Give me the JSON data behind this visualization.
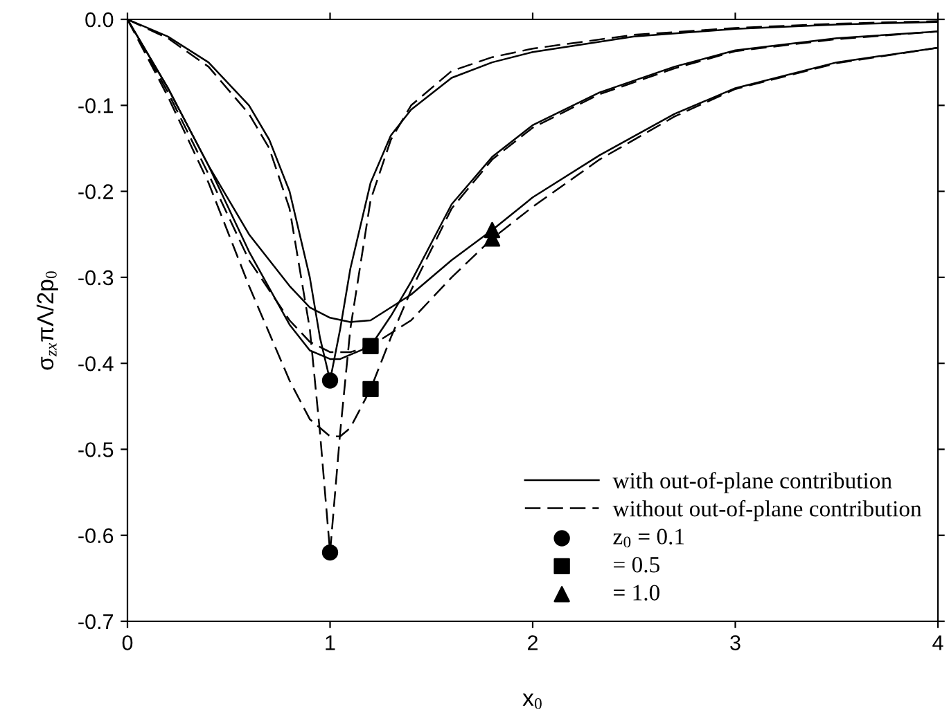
{
  "chart_data": {
    "type": "line",
    "xlabel": "x$_{0}$",
    "ylabel": "σ$_{zx}$πΛ/2p$_{0}$",
    "xlim": [
      0,
      4
    ],
    "xticks": [
      0,
      1,
      2,
      3,
      4
    ],
    "ylim": [
      -0.7,
      0
    ],
    "yticks": [
      {
        "value": -0.7,
        "label": "-0.7"
      },
      {
        "value": -0.6,
        "label": "-0.6"
      },
      {
        "value": -0.5,
        "label": "-0.5"
      },
      {
        "value": -0.4,
        "label": "-0.4"
      },
      {
        "value": -0.3,
        "label": "-0.3"
      },
      {
        "value": -0.2,
        "label": "-0.2"
      },
      {
        "value": -0.1,
        "label": "-0.1"
      },
      {
        "value": 0,
        "label": "0.0"
      }
    ],
    "grid": false,
    "legend": "bottom right",
    "series": [
      {
        "name": "with out-of-plane contribution",
        "color": "#000000",
        "line_style": "solid",
        "x": [
          0,
          0.2,
          0.4,
          0.6,
          0.7,
          0.8,
          0.9,
          0.95,
          1.0,
          1.05,
          1.1,
          1.2,
          1.3,
          1.4,
          1.6,
          1.8,
          2,
          2.5,
          3,
          3.5,
          4
        ],
        "values": [
          0,
          -0.02,
          -0.05,
          -0.1,
          -0.14,
          -0.2,
          -0.3,
          -0.37,
          -0.42,
          -0.36,
          -0.29,
          -0.19,
          -0.135,
          -0.105,
          -0.068,
          -0.05,
          -0.038,
          -0.02,
          -0.011,
          -0.006,
          -0.003
        ]
      },
      {
        "name": "without out-of-plane contribution",
        "color": "#000000",
        "line_style": "dashed",
        "x": [
          0,
          0.2,
          0.4,
          0.6,
          0.7,
          0.8,
          0.9,
          0.95,
          1.0,
          1.05,
          1.1,
          1.2,
          1.3,
          1.4,
          1.6,
          1.8,
          2,
          2.5,
          3,
          3.5,
          4
        ],
        "values": [
          0,
          -0.022,
          -0.055,
          -0.11,
          -0.15,
          -0.22,
          -0.36,
          -0.48,
          -0.62,
          -0.48,
          -0.36,
          -0.21,
          -0.14,
          -0.1,
          -0.06,
          -0.044,
          -0.034,
          -0.018,
          -0.01,
          -0.005,
          -0.002
        ]
      },
      {
        "color": "#000000",
        "line_style": "solid",
        "x": [
          0,
          0.2,
          0.4,
          0.6,
          0.8,
          0.9,
          1.0,
          1.05,
          1.1,
          1.2,
          1.3,
          1.4,
          1.6,
          1.8,
          2,
          2.33,
          2.7,
          3,
          3.5,
          4
        ],
        "values": [
          0,
          -0.08,
          -0.17,
          -0.27,
          -0.355,
          -0.385,
          -0.395,
          -0.395,
          -0.39,
          -0.38,
          -0.345,
          -0.305,
          -0.215,
          -0.16,
          -0.123,
          -0.085,
          -0.055,
          -0.036,
          -0.022,
          -0.014
        ]
      },
      {
        "color": "#000000",
        "line_style": "dashed",
        "x": [
          0,
          0.2,
          0.4,
          0.6,
          0.8,
          0.9,
          1.0,
          1.05,
          1.1,
          1.2,
          1.3,
          1.4,
          1.6,
          1.8,
          2,
          2.33,
          2.7,
          3,
          3.5,
          4
        ],
        "values": [
          0,
          -0.09,
          -0.19,
          -0.31,
          -0.42,
          -0.465,
          -0.485,
          -0.485,
          -0.475,
          -0.43,
          -0.37,
          -0.315,
          -0.22,
          -0.163,
          -0.126,
          -0.087,
          -0.057,
          -0.037,
          -0.023,
          -0.014
        ]
      },
      {
        "color": "#000000",
        "line_style": "solid",
        "x": [
          0,
          0.2,
          0.4,
          0.6,
          0.8,
          0.9,
          1.0,
          1.1,
          1.2,
          1.4,
          1.6,
          1.8,
          2,
          2.33,
          2.7,
          3,
          3.5,
          4
        ],
        "values": [
          0,
          -0.08,
          -0.17,
          -0.25,
          -0.31,
          -0.335,
          -0.347,
          -0.352,
          -0.35,
          -0.32,
          -0.28,
          -0.245,
          -0.207,
          -0.158,
          -0.11,
          -0.08,
          -0.05,
          -0.033
        ]
      },
      {
        "color": "#000000",
        "line_style": "dashed",
        "x": [
          0,
          0.2,
          0.4,
          0.6,
          0.8,
          0.9,
          1.0,
          1.1,
          1.2,
          1.4,
          1.6,
          1.8,
          2,
          2.33,
          2.7,
          3,
          3.5,
          4
        ],
        "values": [
          0,
          -0.085,
          -0.18,
          -0.28,
          -0.35,
          -0.375,
          -0.387,
          -0.387,
          -0.38,
          -0.35,
          -0.3,
          -0.255,
          -0.218,
          -0.163,
          -0.113,
          -0.081,
          -0.051,
          -0.033
        ]
      },
      {
        "type": "scatter",
        "name": "z$_{0}$ = 0.1",
        "color": "#000000",
        "marker": "circle",
        "x": [
          1,
          1
        ],
        "values": [
          -0.42,
          -0.62
        ]
      },
      {
        "type": "scatter",
        "name": "= 0.5",
        "color": "#000000",
        "marker": "square",
        "x": [
          1.2,
          1.2
        ],
        "values": [
          -0.38,
          -0.43
        ]
      },
      {
        "type": "scatter",
        "name": "= 1.0",
        "color": "#000000",
        "marker": "triangle",
        "x": [
          1.8,
          1.8
        ],
        "values": [
          -0.245,
          -0.255
        ]
      }
    ]
  }
}
